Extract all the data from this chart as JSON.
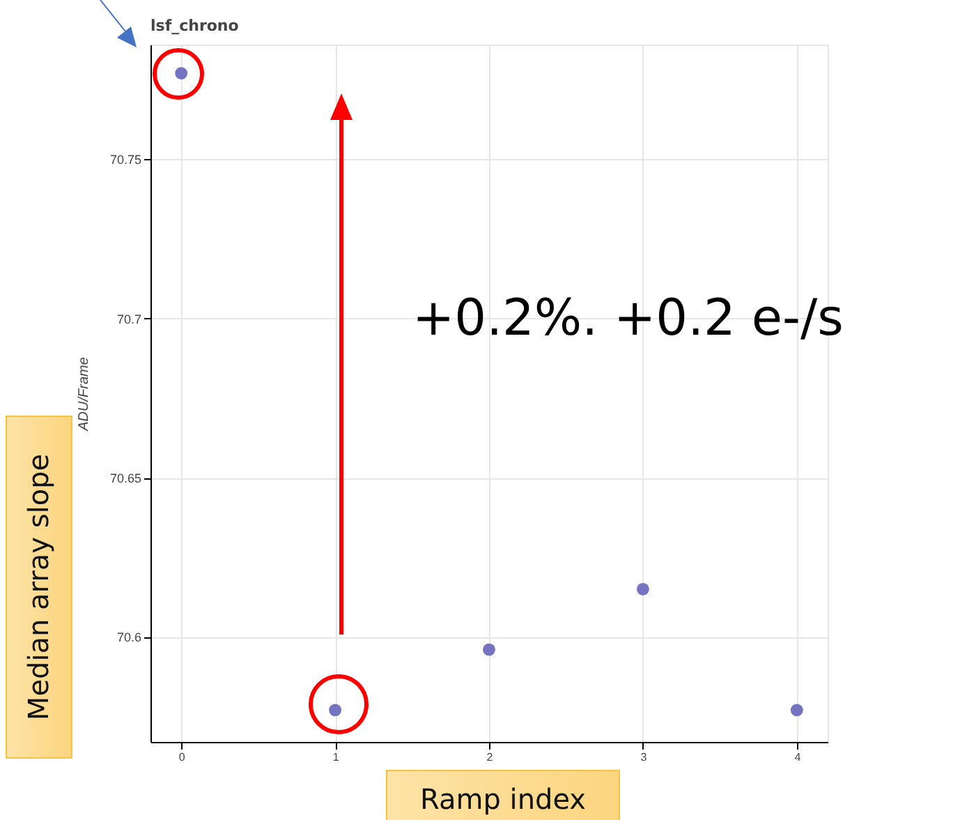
{
  "chart_data": {
    "type": "scatter",
    "title": "lsf_chrono",
    "xlabel": "Ramp index",
    "ylabel": "ADU/Frame",
    "annotations": [
      "Median array slope",
      "+0.2%. +0.2 e-/s"
    ],
    "x": [
      0,
      1,
      2,
      3,
      4
    ],
    "series": [
      {
        "color": "#7474c0",
        "values": [
          70.777,
          70.577,
          70.596,
          70.615,
          70.577
        ]
      }
    ],
    "xlim": [
      -0.2,
      4.2
    ],
    "xticks": [
      0,
      1,
      2,
      3,
      4
    ],
    "ylim": [
      70.567,
      70.786
    ],
    "yticks": [
      70.6,
      70.65,
      70.7,
      70.75
    ],
    "grid": true,
    "marker": "circle"
  }
}
